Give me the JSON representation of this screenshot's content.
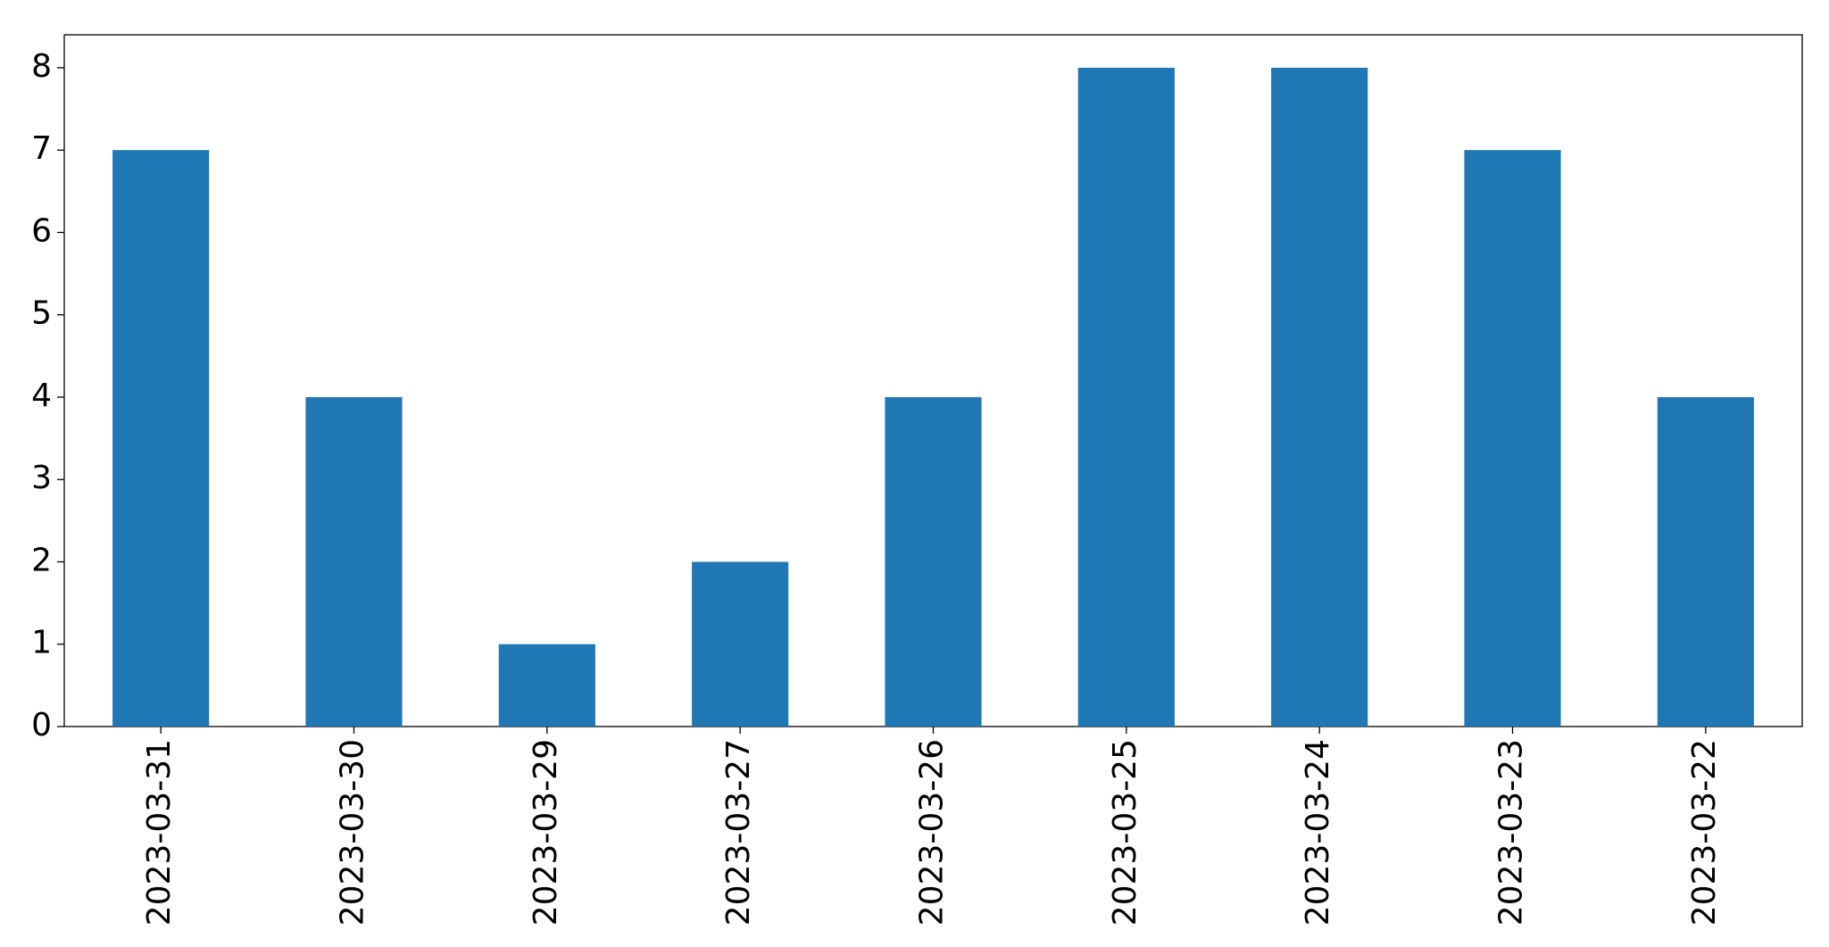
{
  "chart_data": {
    "type": "bar",
    "categories": [
      "2023-03-31",
      "2023-03-30",
      "2023-03-29",
      "2023-03-27",
      "2023-03-26",
      "2023-03-25",
      "2023-03-24",
      "2023-03-23",
      "2023-03-22"
    ],
    "values": [
      7,
      4,
      1,
      2,
      4,
      8,
      8,
      7,
      4
    ],
    "color": "#1f77b4",
    "ylim": [
      0,
      8.4
    ],
    "yticks": [
      0,
      1,
      2,
      3,
      4,
      5,
      6,
      7,
      8
    ],
    "grid": false
  }
}
